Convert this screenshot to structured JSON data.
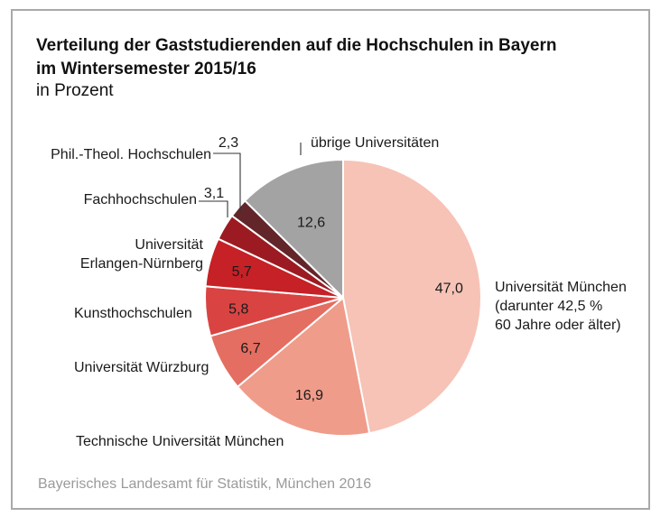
{
  "chart_data": {
    "type": "pie",
    "title": "Verteilung der Gaststudierenden auf die Hochschulen in Bayern im Wintersemester 2015/16",
    "subtitle": "in Prozent",
    "unit": "Prozent",
    "slices": [
      {
        "label": "Universität München",
        "label_lines": [
          "Universität München",
          "(darunter 42,5 %",
          "60 Jahre oder älter)"
        ],
        "value": 47.0,
        "value_label": "47,0",
        "color": "#f6c3b6"
      },
      {
        "label": "Technische Universität München",
        "label_lines": [
          "Technische Universität München"
        ],
        "value": 16.9,
        "value_label": "16,9",
        "color": "#f09c8a"
      },
      {
        "label": "Universität Würzburg",
        "label_lines": [
          "Universität Würzburg"
        ],
        "value": 6.7,
        "value_label": "6,7",
        "color": "#e46e61"
      },
      {
        "label": "Kunsthochschulen",
        "label_lines": [
          "Kunsthochschulen"
        ],
        "value": 5.8,
        "value_label": "5,8",
        "color": "#d94443"
      },
      {
        "label": "Universität Erlangen-Nürnberg",
        "label_lines": [
          "Universität",
          "Erlangen-Nürnberg"
        ],
        "value": 5.7,
        "value_label": "5,7",
        "color": "#c62126"
      },
      {
        "label": "Fachhochschulen",
        "label_lines": [
          "Fachhochschulen"
        ],
        "value": 3.1,
        "value_label": "3,1",
        "color": "#9c1b22"
      },
      {
        "label": "Phil.-Theol. Hochschulen",
        "label_lines": [
          "Phil.-Theol. Hochschulen"
        ],
        "value": 2.3,
        "value_label": "2,3",
        "color": "#62262a"
      },
      {
        "label": "übrige Universitäten",
        "label_lines": [
          "übrige Universitäten"
        ],
        "value": 12.6,
        "value_label": "12,6",
        "color": "#a3a3a3"
      }
    ]
  },
  "title_lines": [
    "Verteilung der Gaststudierenden auf die Hochschulen in Bayern",
    "im Wintersemester 2015/16"
  ],
  "subtitle": "in Prozent",
  "source": "Bayerisches Landesamt für Statistik, München 2016"
}
